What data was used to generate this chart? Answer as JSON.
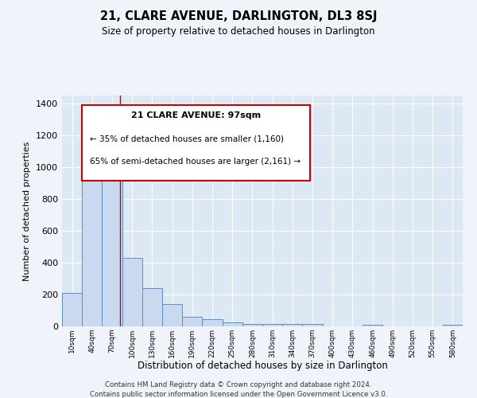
{
  "title": "21, CLARE AVENUE, DARLINGTON, DL3 8SJ",
  "subtitle": "Size of property relative to detached houses in Darlington",
  "xlabel": "Distribution of detached houses by size in Darlington",
  "ylabel": "Number of detached properties",
  "bar_color": "#c9d9f0",
  "bar_edge_color": "#5b8ec9",
  "background_color": "#dde8f5",
  "grid_color": "#ffffff",
  "fig_background": "#f0f4fa",
  "annotation_box_color": "#ffffff",
  "annotation_box_edge": "#cc0000",
  "red_line_x": 97,
  "annotation_title": "21 CLARE AVENUE: 97sqm",
  "annotation_line1": "← 35% of detached houses are smaller (1,160)",
  "annotation_line2": "65% of semi-detached houses are larger (2,161) →",
  "bin_edges": [
    10,
    40,
    70,
    100,
    130,
    160,
    190,
    220,
    250,
    280,
    310,
    340,
    370,
    400,
    430,
    460,
    490,
    520,
    550,
    580,
    610
  ],
  "counts": [
    210,
    1130,
    1095,
    430,
    240,
    140,
    60,
    47,
    25,
    17,
    13,
    13,
    13,
    0,
    0,
    8,
    0,
    0,
    0,
    8
  ],
  "ylim": [
    0,
    1450
  ],
  "yticks": [
    0,
    200,
    400,
    600,
    800,
    1000,
    1200,
    1400
  ],
  "footnote1": "Contains HM Land Registry data © Crown copyright and database right 2024.",
  "footnote2": "Contains public sector information licensed under the Open Government Licence v3.0."
}
